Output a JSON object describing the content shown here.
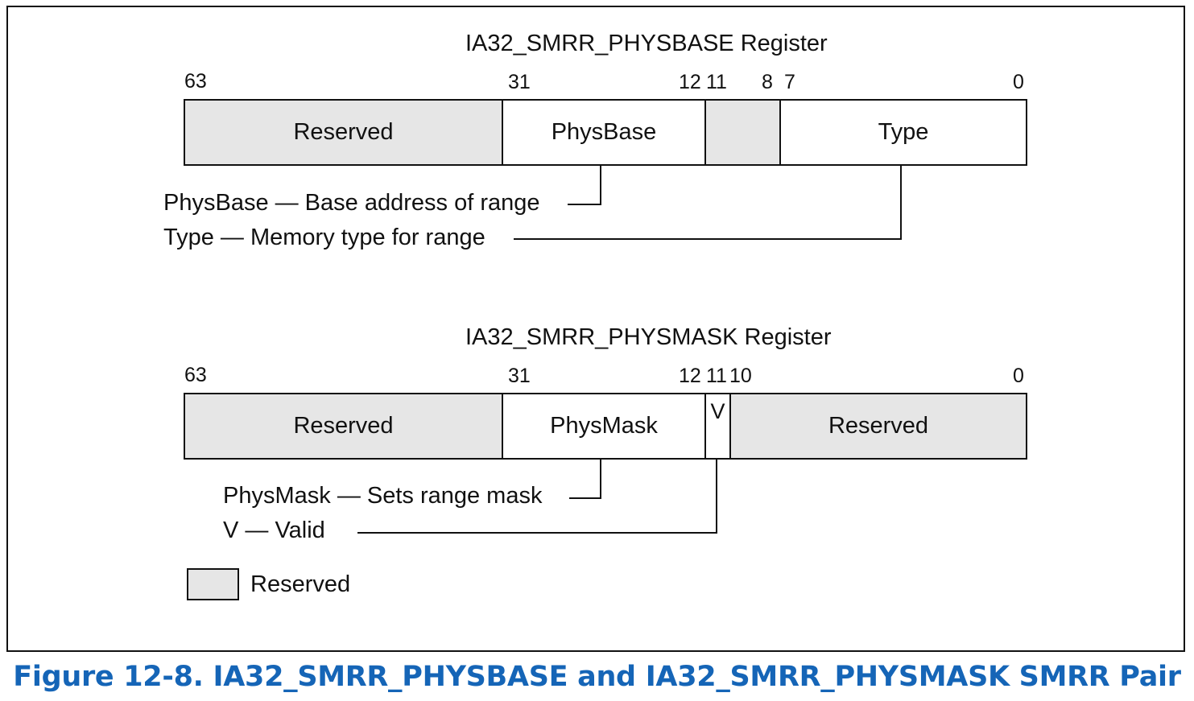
{
  "figure_caption": "Figure 12-8.  IA32_SMRR_PHYSBASE and IA32_SMRR_PHYSMASK SMRR Pair",
  "colors": {
    "reserved_fill": "#e6e6e6",
    "caption": "#1565b7",
    "line": "#111111"
  },
  "physbase": {
    "title": "IA32_SMRR_PHYSBASE Register",
    "bits": [
      "63",
      "31",
      "12",
      "11",
      "8",
      "7",
      "0"
    ],
    "fields": [
      {
        "label": "Reserved",
        "reserved": true
      },
      {
        "label": "PhysBase",
        "reserved": false
      },
      {
        "label": "",
        "reserved": true
      },
      {
        "label": "Type",
        "reserved": false
      }
    ],
    "descriptions": [
      "PhysBase — Base address of range",
      "Type — Memory type for range"
    ]
  },
  "physmask": {
    "title": "IA32_SMRR_PHYSMASK Register",
    "bits": [
      "63",
      "31",
      "12",
      "11",
      "10",
      "0"
    ],
    "fields": [
      {
        "label": "Reserved",
        "reserved": true
      },
      {
        "label": "PhysMask",
        "reserved": false
      },
      {
        "label": "V",
        "reserved": false
      },
      {
        "label": "Reserved",
        "reserved": true
      }
    ],
    "descriptions": [
      "PhysMask — Sets range mask",
      "V — Valid"
    ]
  },
  "legend": {
    "label": "Reserved"
  }
}
